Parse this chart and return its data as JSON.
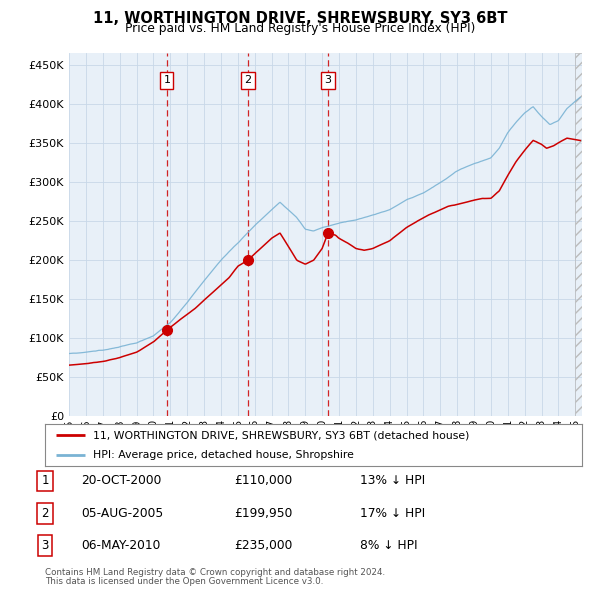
{
  "title": "11, WORTHINGTON DRIVE, SHREWSBURY, SY3 6BT",
  "subtitle": "Price paid vs. HM Land Registry's House Price Index (HPI)",
  "legend_line1": "11, WORTHINGTON DRIVE, SHREWSBURY, SY3 6BT (detached house)",
  "legend_line2": "HPI: Average price, detached house, Shropshire",
  "footer1": "Contains HM Land Registry data © Crown copyright and database right 2024.",
  "footer2": "This data is licensed under the Open Government Licence v3.0.",
  "transactions": [
    {
      "num": 1,
      "date": "20-OCT-2000",
      "price": 110000,
      "hpi_diff": "13% ↓ HPI",
      "x_year": 2000.8
    },
    {
      "num": 2,
      "date": "05-AUG-2005",
      "price": 199950,
      "hpi_diff": "17% ↓ HPI",
      "x_year": 2005.6
    },
    {
      "num": 3,
      "date": "06-MAY-2010",
      "price": 235000,
      "hpi_diff": "8% ↓ HPI",
      "x_year": 2010.35
    }
  ],
  "hpi_color": "#7ab3d4",
  "price_color": "#cc0000",
  "plot_bg": "#e8f0f8",
  "vline_color": "#cc0000",
  "ylim": [
    0,
    465000
  ],
  "xlim_start": 1995.0,
  "xlim_end": 2025.4,
  "yticks": [
    0,
    50000,
    100000,
    150000,
    200000,
    250000,
    300000,
    350000,
    400000,
    450000
  ]
}
